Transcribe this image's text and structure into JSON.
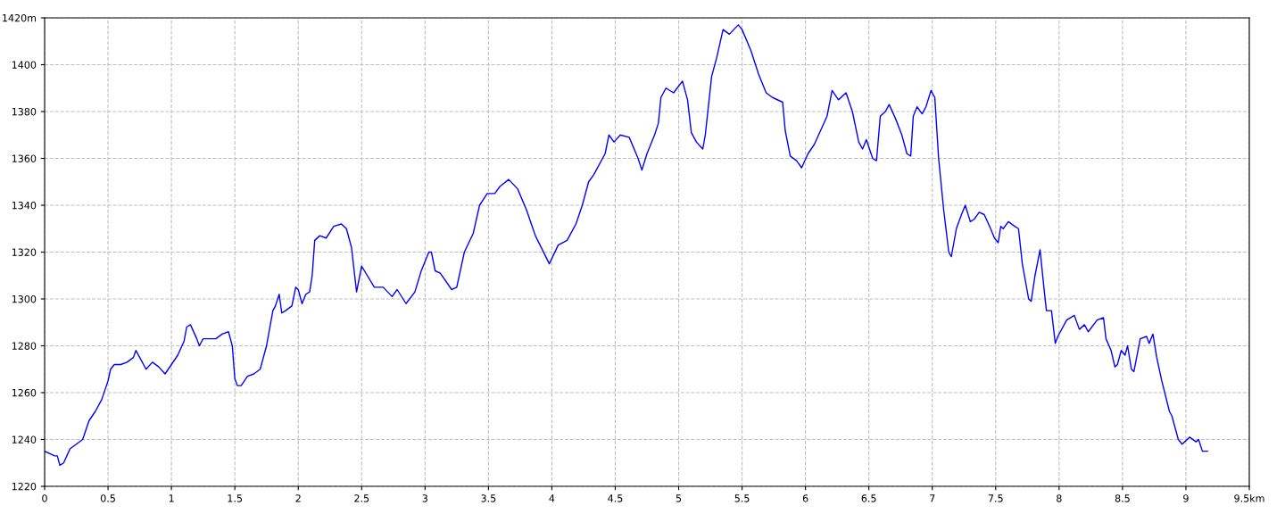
{
  "chart_data": {
    "type": "line",
    "x": [
      0,
      0.08,
      0.1,
      0.12,
      0.15,
      0.2,
      0.25,
      0.3,
      0.35,
      0.4,
      0.45,
      0.5,
      0.52,
      0.55,
      0.6,
      0.65,
      0.7,
      0.72,
      0.75,
      0.8,
      0.85,
      0.9,
      0.95,
      1,
      1.05,
      1.1,
      1.12,
      1.15,
      1.2,
      1.22,
      1.25,
      1.35,
      1.4,
      1.45,
      1.48,
      1.5,
      1.52,
      1.55,
      1.6,
      1.65,
      1.7,
      1.75,
      1.8,
      1.82,
      1.85,
      1.87,
      1.9,
      1.95,
      1.98,
      2.0,
      2.03,
      2.06,
      2.09,
      2.11,
      2.13,
      2.17,
      2.22,
      2.28,
      2.34,
      2.38,
      2.42,
      2.46,
      2.5,
      2.6,
      2.67,
      2.74,
      2.78,
      2.85,
      2.92,
      2.97,
      3.03,
      3.05,
      3.08,
      3.12,
      3.21,
      3.25,
      3.31,
      3.38,
      3.43,
      3.49,
      3.55,
      3.59,
      3.66,
      3.73,
      3.8,
      3.87,
      3.98,
      4.05,
      4.12,
      4.19,
      4.24,
      4.29,
      4.33,
      4.42,
      4.45,
      4.49,
      4.54,
      4.61,
      4.68,
      4.71,
      4.75,
      4.81,
      4.84,
      4.86,
      4.9,
      4.96,
      5.03,
      5.07,
      5.1,
      5.14,
      5.19,
      5.21,
      5.26,
      5.3,
      5.35,
      5.4,
      5.47,
      5.5,
      5.57,
      5.63,
      5.69,
      5.74,
      5.82,
      5.84,
      5.88,
      5.93,
      5.97,
      6.02,
      6.07,
      6.12,
      6.17,
      6.21,
      6.26,
      6.32,
      6.37,
      6.42,
      6.45,
      6.48,
      6.53,
      6.56,
      6.59,
      6.63,
      6.66,
      6.71,
      6.76,
      6.8,
      6.83,
      6.85,
      6.88,
      6.92,
      6.95,
      6.99,
      7.02,
      7.05,
      7.09,
      7.13,
      7.15,
      7.19,
      7.23,
      7.26,
      7.3,
      7.33,
      7.37,
      7.41,
      7.46,
      7.49,
      7.52,
      7.54,
      7.56,
      7.6,
      7.65,
      7.68,
      7.71,
      7.76,
      7.78,
      7.81,
      7.85,
      7.88,
      7.9,
      7.94,
      7.97,
      7.99,
      8.06,
      8.12,
      8.16,
      8.2,
      8.23,
      8.3,
      8.35,
      8.37,
      8.41,
      8.44,
      8.46,
      8.49,
      8.52,
      8.54,
      8.57,
      8.59,
      8.64,
      8.69,
      8.71,
      8.74,
      8.77,
      8.81,
      8.87,
      8.89,
      8.94,
      8.97,
      9.03,
      9.08,
      9.1,
      9.13,
      9.17
    ],
    "series": [
      {
        "color": "#0000ff",
        "values": [
          1235,
          1233,
          1233,
          1229,
          1230,
          1236,
          1238,
          1240,
          1248,
          1252,
          1257,
          1265,
          1270,
          1272,
          1272,
          1273,
          1275,
          1278,
          1275,
          1270,
          1273,
          1271,
          1268,
          1272,
          1276,
          1282,
          1288,
          1289,
          1283,
          1280,
          1283,
          1283,
          1285,
          1286,
          1280,
          1266,
          1263,
          1263,
          1267,
          1268,
          1270,
          1280,
          1295,
          1297,
          1302,
          1294,
          1295,
          1297,
          1305,
          1304,
          1298,
          1302,
          1303,
          1310,
          1325,
          1327,
          1326,
          1331,
          1332,
          1330,
          1322,
          1303,
          1314,
          1305,
          1305,
          1301,
          1304,
          1298,
          1303,
          1312,
          1320,
          1320,
          1312,
          1311,
          1304,
          1305,
          1320,
          1328,
          1340,
          1345,
          1345,
          1348,
          1351,
          1347,
          1338,
          1327,
          1315,
          1323,
          1325,
          1332,
          1340,
          1350,
          1353,
          1362,
          1370,
          1367,
          1370,
          1369,
          1360,
          1355,
          1362,
          1370,
          1375,
          1386,
          1390,
          1388,
          1393,
          1385,
          1371,
          1367,
          1364,
          1370,
          1395,
          1403,
          1415,
          1413,
          1417,
          1415,
          1406,
          1396,
          1388,
          1386,
          1384,
          1372,
          1361,
          1359,
          1356,
          1362,
          1366,
          1372,
          1378,
          1389,
          1385,
          1388,
          1380,
          1367,
          1364,
          1368,
          1360,
          1359,
          1378,
          1380,
          1383,
          1377,
          1370,
          1362,
          1361,
          1378,
          1382,
          1379,
          1382,
          1389,
          1386,
          1360,
          1338,
          1320,
          1318,
          1330,
          1336,
          1340,
          1333,
          1334,
          1337,
          1336,
          1330,
          1326,
          1324,
          1331,
          1330,
          1333,
          1331,
          1330,
          1315,
          1300,
          1299,
          1310,
          1321,
          1305,
          1295,
          1295,
          1281,
          1284,
          1291,
          1293,
          1287,
          1289,
          1286,
          1291,
          1292,
          1283,
          1278,
          1271,
          1272,
          1278,
          1276,
          1280,
          1270,
          1269,
          1283,
          1284,
          1281,
          1285,
          1275,
          1265,
          1252,
          1250,
          1240,
          1238,
          1241,
          1239,
          1240,
          1235,
          1235
        ]
      }
    ],
    "xlim": [
      0,
      9.5
    ],
    "xticks": [
      0,
      0.5,
      1,
      1.5,
      2,
      2.5,
      3,
      3.5,
      4,
      4.5,
      5,
      5.5,
      6,
      6.5,
      7,
      7.5,
      8,
      8.5,
      9,
      {
        "value": 9.5,
        "label": "9.5km"
      }
    ],
    "ylim": [
      1220,
      1420
    ],
    "yticks": [
      1220,
      1240,
      1260,
      1280,
      1300,
      1320,
      1340,
      1360,
      1380,
      1400,
      {
        "value": 1420,
        "label": "1420m"
      }
    ],
    "grid": true,
    "line_style": "solid"
  }
}
